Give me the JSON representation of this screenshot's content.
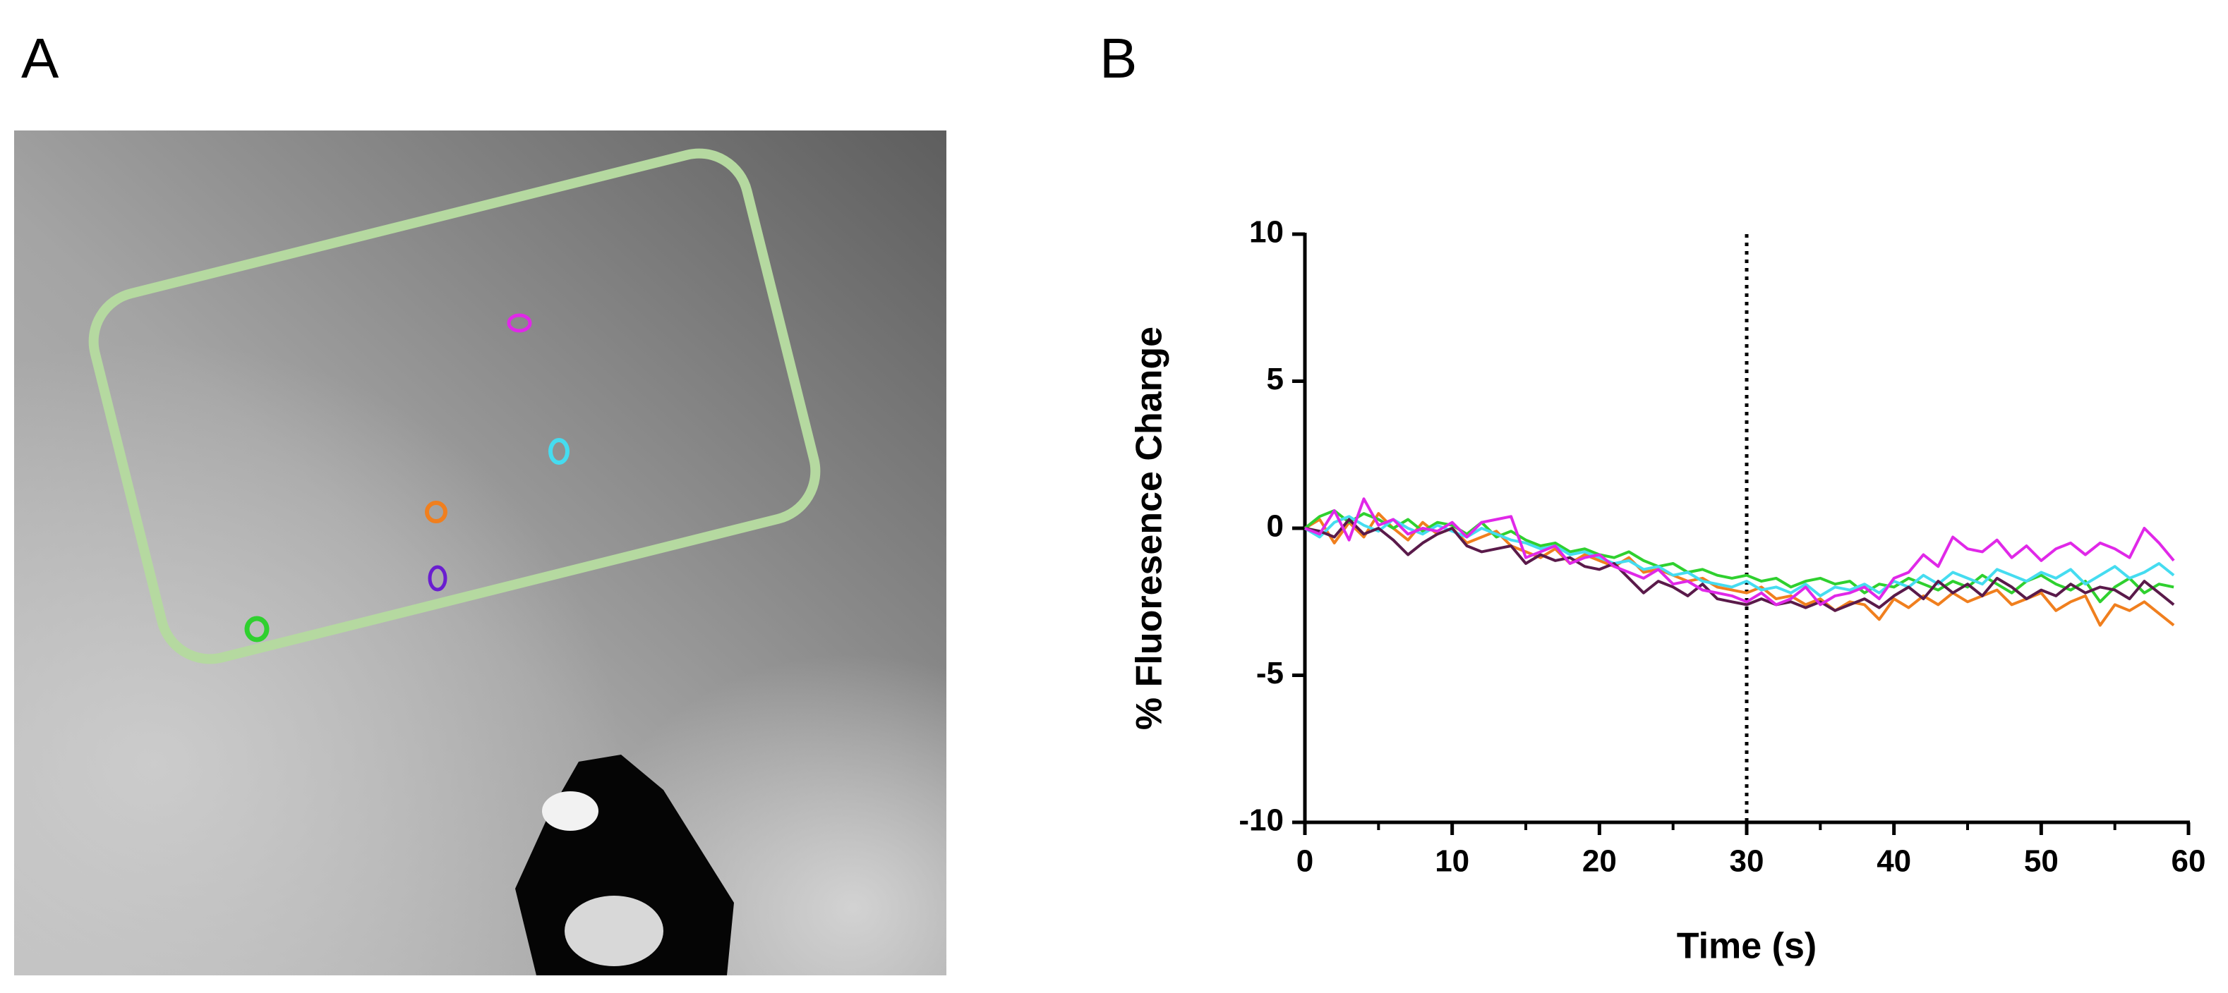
{
  "panel_labels": [
    "A",
    "B"
  ],
  "chart_data": {
    "type": "line",
    "xlabel": "Time (s)",
    "ylabel": "% Fluoresence Change",
    "x": [
      0,
      1,
      2,
      3,
      4,
      5,
      6,
      7,
      8,
      9,
      10,
      11,
      12,
      13,
      14,
      15,
      16,
      17,
      18,
      19,
      20,
      21,
      22,
      23,
      24,
      25,
      26,
      27,
      28,
      29,
      30,
      31,
      32,
      33,
      34,
      35,
      36,
      37,
      38,
      39,
      40,
      41,
      42,
      43,
      44,
      45,
      46,
      47,
      48,
      49,
      50,
      51,
      52,
      53,
      54,
      55,
      56,
      57,
      58,
      59
    ],
    "xlim": [
      0,
      60
    ],
    "xticks": [
      0,
      10,
      20,
      30,
      40,
      50,
      60
    ],
    "xminor_ticks": [
      5,
      15,
      25,
      35,
      45,
      55
    ],
    "ylim": [
      -10,
      10
    ],
    "yticks": [
      -10,
      -5,
      0,
      5,
      10
    ],
    "vline_x": 30,
    "series": [
      {
        "color": "#f07f1e",
        "values": [
          0,
          0.3,
          -0.5,
          0.2,
          -0.3,
          0.5,
          0,
          -0.4,
          0.2,
          -0.2,
          0,
          -0.5,
          -0.3,
          -0.1,
          -0.6,
          -0.8,
          -1.0,
          -0.7,
          -1.2,
          -0.9,
          -1.1,
          -1.3,
          -1.0,
          -1.5,
          -1.4,
          -1.6,
          -1.8,
          -1.7,
          -2.0,
          -2.1,
          -2.2,
          -2.0,
          -2.4,
          -2.3,
          -2.6,
          -2.4,
          -2.8,
          -2.5,
          -2.6,
          -3.1,
          -2.4,
          -2.7,
          -2.3,
          -2.6,
          -2.2,
          -2.5,
          -2.3,
          -2.1,
          -2.6,
          -2.4,
          -2.2,
          -2.8,
          -2.5,
          -2.3,
          -3.3,
          -2.6,
          -2.8,
          -2.5,
          -2.9,
          -3.3
        ]
      },
      {
        "color": "#2fd02f",
        "values": [
          0,
          0.4,
          0.6,
          0.2,
          0.5,
          0.3,
          0,
          0.3,
          -0.1,
          0.2,
          0.1,
          -0.2,
          0.2,
          -0.3,
          -0.1,
          -0.4,
          -0.6,
          -0.5,
          -0.8,
          -0.7,
          -0.9,
          -1.0,
          -0.8,
          -1.1,
          -1.3,
          -1.2,
          -1.5,
          -1.4,
          -1.6,
          -1.7,
          -1.6,
          -1.8,
          -1.7,
          -2.0,
          -1.8,
          -1.7,
          -1.9,
          -1.8,
          -2.2,
          -1.9,
          -2.0,
          -1.7,
          -1.9,
          -2.1,
          -1.8,
          -2.0,
          -1.6,
          -1.9,
          -2.2,
          -1.8,
          -1.6,
          -1.9,
          -2.1,
          -1.8,
          -2.5,
          -2.0,
          -1.7,
          -2.2,
          -1.9,
          -2.0
        ]
      },
      {
        "color": "#45dcf0",
        "values": [
          0,
          -0.3,
          0.2,
          0.4,
          0.1,
          -0.1,
          0.3,
          0,
          -0.2,
          0.1,
          -0.1,
          -0.3,
          0,
          -0.2,
          -0.4,
          -0.5,
          -0.7,
          -0.6,
          -0.9,
          -0.8,
          -1.0,
          -1.2,
          -1.1,
          -1.4,
          -1.3,
          -1.6,
          -1.5,
          -1.8,
          -1.9,
          -2.0,
          -1.8,
          -2.1,
          -2.0,
          -2.2,
          -1.9,
          -2.3,
          -2.0,
          -2.1,
          -1.9,
          -2.2,
          -1.8,
          -2.0,
          -1.6,
          -1.9,
          -1.5,
          -1.7,
          -1.9,
          -1.4,
          -1.6,
          -1.8,
          -1.5,
          -1.7,
          -1.4,
          -1.9,
          -1.6,
          -1.3,
          -1.7,
          -1.5,
          -1.2,
          -1.6
        ]
      },
      {
        "color": "#5a1a4a",
        "values": [
          0,
          -0.1,
          -0.3,
          0.3,
          -0.2,
          0,
          -0.4,
          -0.9,
          -0.5,
          -0.2,
          0,
          -0.6,
          -0.8,
          -0.7,
          -0.6,
          -1.2,
          -0.9,
          -1.1,
          -1.0,
          -1.3,
          -1.4,
          -1.2,
          -1.7,
          -2.2,
          -1.8,
          -2.0,
          -2.3,
          -1.9,
          -2.4,
          -2.5,
          -2.6,
          -2.4,
          -2.6,
          -2.5,
          -2.7,
          -2.5,
          -2.8,
          -2.6,
          -2.4,
          -2.7,
          -2.3,
          -2.0,
          -2.4,
          -1.8,
          -2.2,
          -1.9,
          -2.3,
          -1.7,
          -2.0,
          -2.4,
          -2.1,
          -2.3,
          -1.9,
          -2.2,
          -2.0,
          -2.1,
          -2.4,
          -1.8,
          -2.2,
          -2.6
        ]
      },
      {
        "color": "#e028e8",
        "values": [
          0,
          -0.2,
          0.6,
          -0.4,
          1.0,
          0.1,
          0.3,
          -0.2,
          0,
          -0.1,
          0.2,
          -0.3,
          0.2,
          0.3,
          0.4,
          -1.0,
          -0.8,
          -0.6,
          -1.2,
          -1.0,
          -0.9,
          -1.3,
          -1.5,
          -1.7,
          -1.4,
          -1.9,
          -1.8,
          -2.1,
          -2.2,
          -2.3,
          -2.5,
          -2.2,
          -2.6,
          -2.4,
          -2.0,
          -2.6,
          -2.3,
          -2.2,
          -2.0,
          -2.4,
          -1.7,
          -1.5,
          -0.9,
          -1.3,
          -0.3,
          -0.7,
          -0.8,
          -0.4,
          -1.0,
          -0.6,
          -1.1,
          -0.7,
          -0.5,
          -0.9,
          -0.5,
          -0.7,
          -1.0,
          0.0,
          -0.5,
          -1.1
        ]
      }
    ]
  }
}
